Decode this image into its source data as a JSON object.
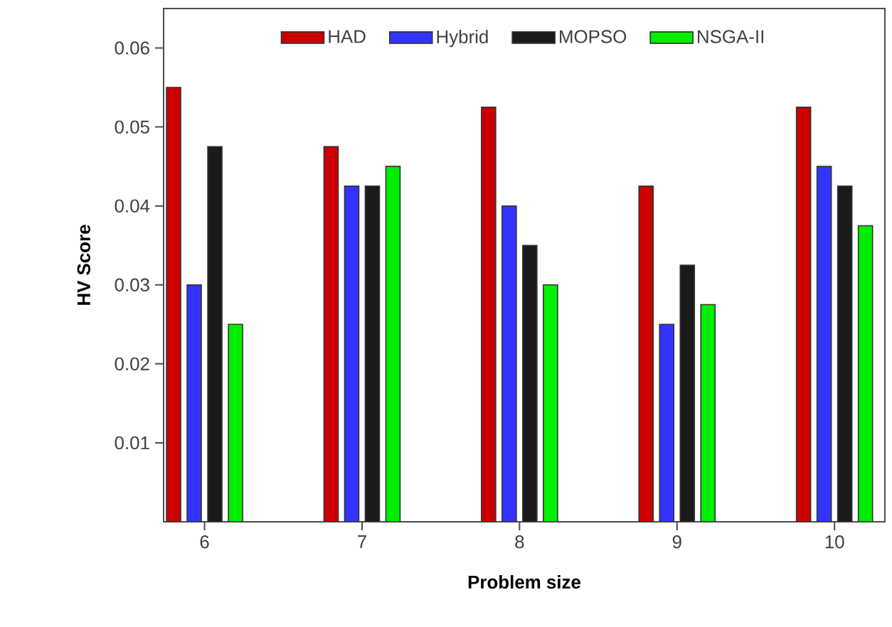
{
  "chart_data": {
    "type": "bar",
    "xlabel": "Problem size",
    "ylabel": "HV Score",
    "categories": [
      "6",
      "7",
      "8",
      "9",
      "10"
    ],
    "series": [
      {
        "name": "HAD",
        "color": "#cc0000",
        "values": [
          0.055,
          0.0475,
          0.0525,
          0.0425,
          0.0525
        ]
      },
      {
        "name": "Hybrid",
        "color": "#3333ff",
        "values": [
          0.03,
          0.0425,
          0.04,
          0.025,
          0.045
        ]
      },
      {
        "name": "MOPSO",
        "color": "#1a1a1a",
        "values": [
          0.0475,
          0.0425,
          0.035,
          0.0325,
          0.0425
        ]
      },
      {
        "name": "NSGA-II",
        "color": "#00ee00",
        "values": [
          0.025,
          0.045,
          0.03,
          0.0275,
          0.0375
        ]
      }
    ],
    "ylim": [
      0,
      0.065
    ],
    "yticks": [
      0.01,
      0.02,
      0.03,
      0.04,
      0.05,
      0.06
    ],
    "grid": false,
    "legend": "top"
  }
}
